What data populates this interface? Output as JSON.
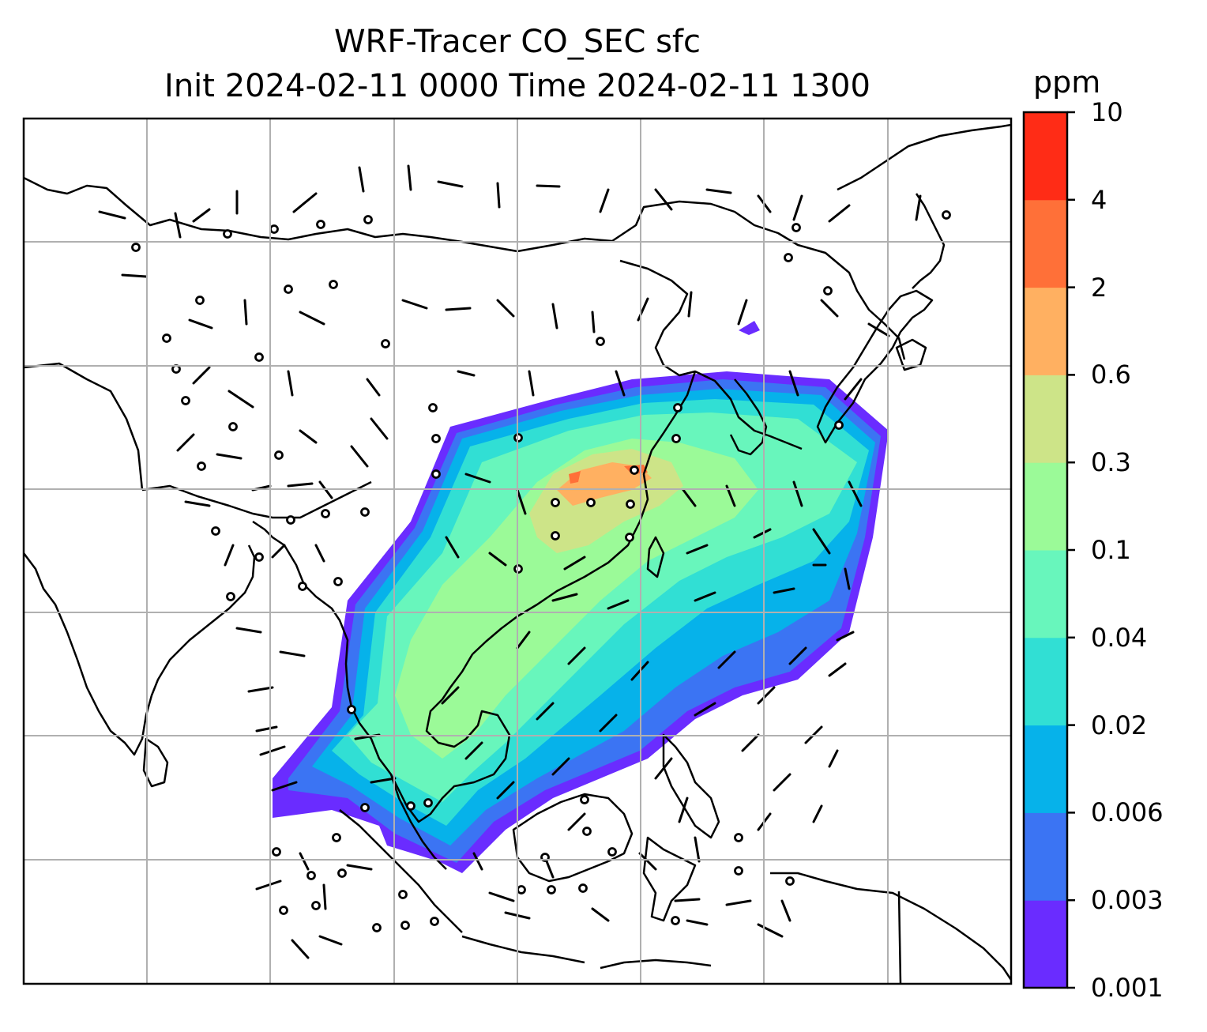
{
  "title": {
    "line1": "WRF-Tracer CO_SEC sfc",
    "line2": "Init 2024-02-11 0000 Time 2024-02-11 1300"
  },
  "colorbar": {
    "unit": "ppm",
    "levels": [
      "0.001",
      "0.003",
      "0.006",
      "0.02",
      "0.04",
      "0.1",
      "0.3",
      "0.6",
      "2",
      "4",
      "10"
    ],
    "colors": [
      "#6a2cff",
      "#3b74f3",
      "#06b2ea",
      "#31dfd4",
      "#68f6bc",
      "#9bfa98",
      "#cde488",
      "#ffb061",
      "#ff7038",
      "#ff2c16"
    ]
  },
  "chart_data": {
    "type": "heatmap",
    "variable": "CO_SEC sfc",
    "units": "ppm",
    "overlays": [
      "coastlines",
      "wind-barbs",
      "calm-circles",
      "gridlines"
    ],
    "grid": true
  }
}
